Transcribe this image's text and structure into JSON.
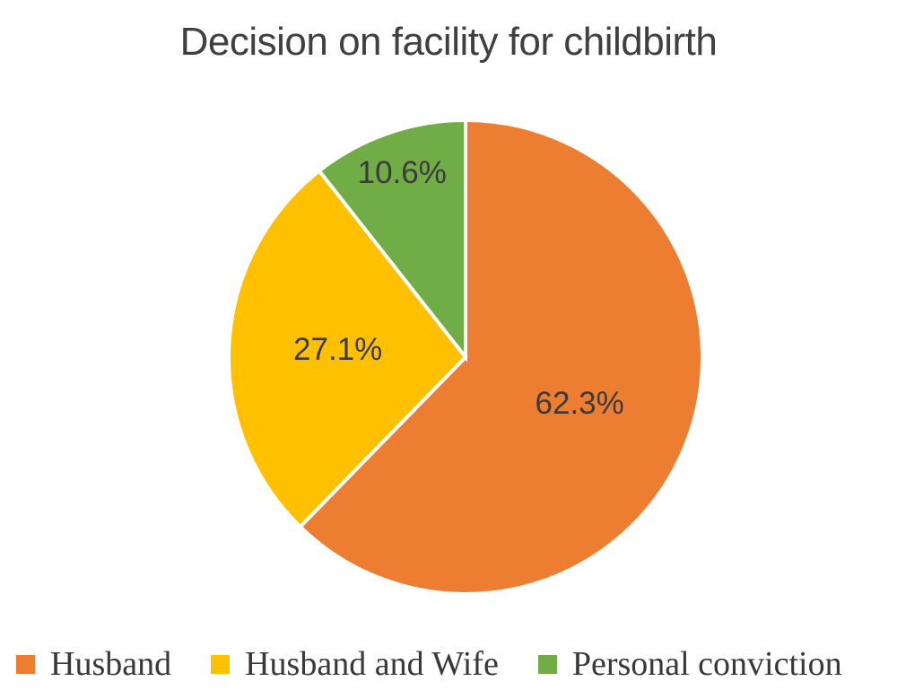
{
  "title": "Decision on facility for childbirth",
  "chart_data": {
    "type": "pie",
    "title": "Decision on facility for childbirth",
    "direction": "clockwise",
    "start_angle_deg": 0,
    "legend_position": "bottom",
    "data_label_format": "percent",
    "slices": [
      {
        "label": "Husband",
        "value": 62.3,
        "display": "62.3%",
        "color": "#ED7D31"
      },
      {
        "label": "Husband and Wife",
        "value": 27.1,
        "display": "27.1%",
        "color": "#FFC000"
      },
      {
        "label": "Personal conviction",
        "value": 10.6,
        "display": "10.6%",
        "color": "#70AD47"
      }
    ]
  },
  "styles": {
    "background": "#FFFFFF",
    "title_color": "#404040",
    "data_label_color": "#3B3B3B",
    "legend_text_color": "#383838",
    "slice_border_color": "#FFFFFF"
  }
}
